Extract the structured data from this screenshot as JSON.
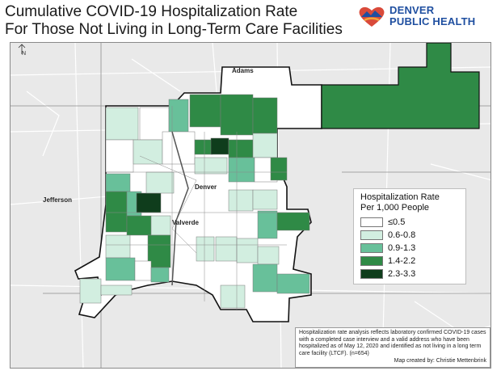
{
  "title_line1": "Cumulative COVID-19 Hospitalization Rate",
  "title_line2": "For Those Not Living in Long-Term Care Facilities",
  "logo": {
    "line1": "DENVER",
    "line2": "PUBLIC HEALTH",
    "icon": "heart-mountain-logo-icon"
  },
  "map": {
    "north_label": "N",
    "labels": {
      "adams": "Adams",
      "denver": "Denver",
      "jefferson": "Jefferson",
      "valverde": "Valverde"
    }
  },
  "legend": {
    "title_line1": "Hospitalization Rate",
    "title_line2": "Per 1,000 People",
    "items": [
      {
        "label": "≤0.5",
        "color": "#ffffff"
      },
      {
        "label": "0.6-0.8",
        "color": "#d2eee0"
      },
      {
        "label": "0.9-1.3",
        "color": "#68c09a"
      },
      {
        "label": "1.4-2.2",
        "color": "#2f8a46"
      },
      {
        "label": "2.3-3.3",
        "color": "#0f3d1c"
      }
    ]
  },
  "note": {
    "text": "Hospitalization rate analysis reflects laboratory confirmed COVID-19 cases with a completed case interview and a valid address who have been hospitalized as of May 12, 2020 and identified as not living in a long term care facility (LTCF). (n=654)",
    "credit": "Map created by: Christie Mettenbrink"
  }
}
